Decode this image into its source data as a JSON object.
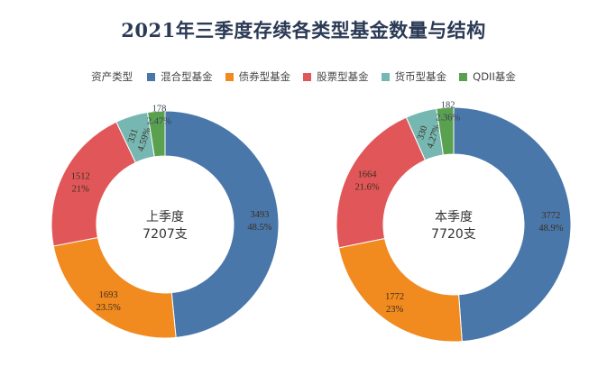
{
  "title": "2021年三季度存续各类型基金数量与结构",
  "legend": {
    "title": "资产类型",
    "items": [
      {
        "label": "混合型基金",
        "color": "#4a77aa"
      },
      {
        "label": "债券型基金",
        "color": "#f18a1f"
      },
      {
        "label": "股票型基金",
        "color": "#e15759"
      },
      {
        "label": "货币型基金",
        "color": "#76b7b2"
      },
      {
        "label": "QDII基金",
        "color": "#59a14f"
      }
    ]
  },
  "chart_data": [
    {
      "type": "pie",
      "donut": true,
      "center_label_line1": "上季度",
      "center_label_line2": "7207支",
      "categories": [
        "混合型基金",
        "债券型基金",
        "股票型基金",
        "货币型基金",
        "QDII基金"
      ],
      "values": [
        3493,
        1693,
        1512,
        331,
        178
      ],
      "percents": [
        "48.5%",
        "23.5%",
        "21%",
        "4.59%",
        "2.47%"
      ]
    },
    {
      "type": "pie",
      "donut": true,
      "center_label_line1": "本季度",
      "center_label_line2": "7720支",
      "categories": [
        "混合型基金",
        "债券型基金",
        "股票型基金",
        "货币型基金",
        "QDII基金"
      ],
      "values": [
        3772,
        1772,
        1664,
        330,
        182
      ],
      "percents": [
        "48.9%",
        "23%",
        "21.6%",
        "4.27%",
        "2.36%"
      ]
    }
  ]
}
